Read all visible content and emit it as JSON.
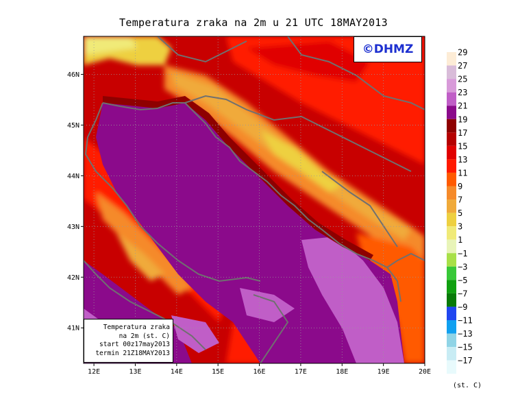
{
  "title": "Temperatura zraka na 2m u 21 UTC 18MAY2013",
  "watermark": "©DHMZ",
  "info": {
    "line1": "Temperatura zraka",
    "line2": "na 2m (st. C)",
    "line3": "start 00z17may2013",
    "line4": "termin 21Z18MAY2013"
  },
  "map": {
    "lon_range": [
      11.75,
      20.0
    ],
    "lat_range": [
      40.3,
      46.75
    ],
    "lon_ticks": [
      {
        "value": 12,
        "label": "12E"
      },
      {
        "value": 13,
        "label": "13E"
      },
      {
        "value": 14,
        "label": "14E"
      },
      {
        "value": 15,
        "label": "15E"
      },
      {
        "value": 16,
        "label": "16E"
      },
      {
        "value": 17,
        "label": "17E"
      },
      {
        "value": 18,
        "label": "18E"
      },
      {
        "value": 19,
        "label": "19E"
      },
      {
        "value": 20,
        "label": "20E"
      }
    ],
    "lat_ticks": [
      {
        "value": 41,
        "label": "41N"
      },
      {
        "value": 42,
        "label": "42N"
      },
      {
        "value": 43,
        "label": "43N"
      },
      {
        "value": 44,
        "label": "44N"
      },
      {
        "value": 45,
        "label": "45N"
      },
      {
        "value": 46,
        "label": "46N"
      }
    ],
    "grid": true
  },
  "legend": {
    "unit": "(st. C)",
    "labels": [
      "29",
      "27",
      "25",
      "23",
      "21",
      "19",
      "17",
      "15",
      "13",
      "11",
      "9",
      "7",
      "5",
      "3",
      "1",
      "−1",
      "−3",
      "−5",
      "−7",
      "−9",
      "−11",
      "−13",
      "−15",
      "−17"
    ],
    "colors": [
      "#fdecd6",
      "#d9bcd9",
      "#d89ad9",
      "#c05ec7",
      "#8b0a8b",
      "#8e0000",
      "#b50000",
      "#e00000",
      "#ff1a00",
      "#ff5a00",
      "#f58a2a",
      "#f0aa3a",
      "#eed040",
      "#f0ea78",
      "#e8f4b8",
      "#a8e048",
      "#38c838",
      "#10a010",
      "#087a08",
      "#2046f0",
      "#10a0f0",
      "#90d4e6",
      "#c8ecf4",
      "#e8fafc"
    ]
  }
}
